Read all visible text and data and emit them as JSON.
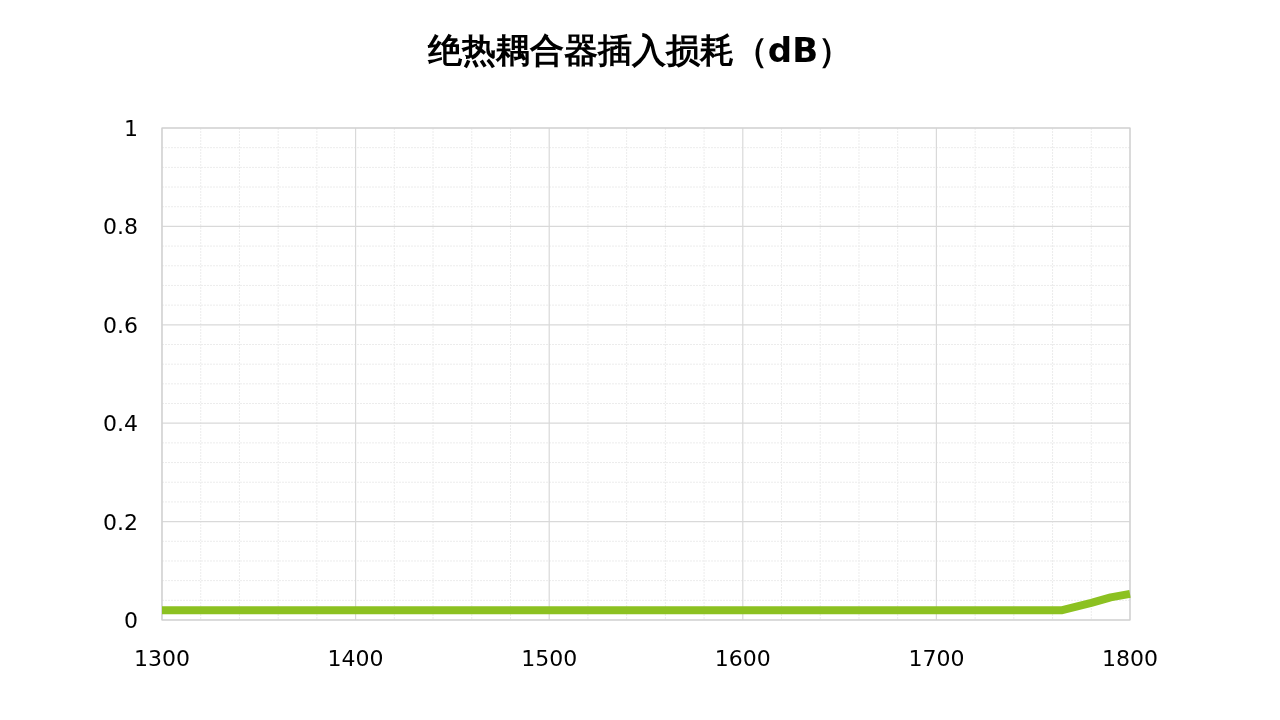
{
  "chart_data": {
    "type": "line",
    "title": "绝热耦合器插入损耗（dB）",
    "x": [
      1300,
      1400,
      1500,
      1600,
      1700,
      1765,
      1780,
      1790,
      1800
    ],
    "series": [
      {
        "color": "#8cc121",
        "values": [
          0.02,
          0.02,
          0.02,
          0.02,
          0.02,
          0.02,
          0.035,
          0.046,
          0.053
        ]
      }
    ],
    "xlim": [
      1300,
      1800
    ],
    "xticks": [
      1300,
      1400,
      1500,
      1600,
      1700,
      1800
    ],
    "ylim": [
      0,
      1
    ],
    "yticks": [
      0,
      0.2,
      0.4,
      0.6,
      0.8,
      1
    ],
    "grid": true,
    "marker": "none",
    "line_style": "solid"
  }
}
